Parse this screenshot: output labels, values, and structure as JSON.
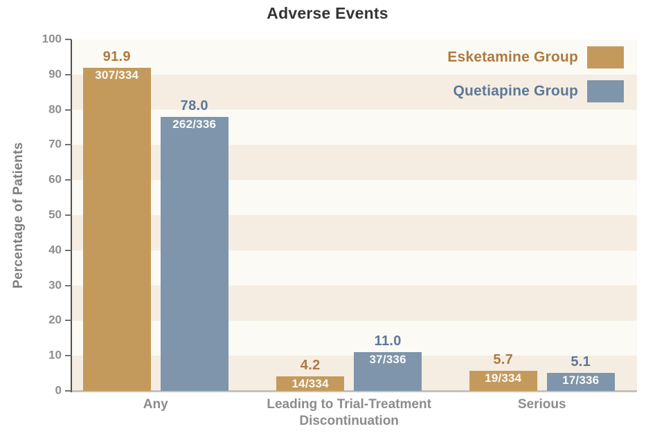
{
  "chart_data": {
    "type": "bar",
    "title": "Adverse Events",
    "ylabel": "Percentage of Patients",
    "ylim": [
      0,
      100
    ],
    "yticks": [
      0,
      10,
      20,
      30,
      40,
      50,
      60,
      70,
      80,
      90,
      100
    ],
    "grid": "alternating horizontal bands every 10 units",
    "legend_position": "top-right inside plot, labels left of swatches",
    "categories": [
      "Any",
      "Leading to Trial-Treatment\nDiscontinuation",
      "Serious"
    ],
    "series": [
      {
        "name": "Esketamine Group",
        "values": [
          91.9,
          4.2,
          5.7
        ],
        "value_labels": [
          "91.9",
          "4.2",
          "5.7"
        ],
        "fractions": [
          "307/334",
          "14/334",
          "19/334"
        ],
        "color": "#C49A5C",
        "label_color": "#AE7A3E"
      },
      {
        "name": "Quetiapine Group",
        "values": [
          78.0,
          11.0,
          5.1
        ],
        "value_labels": [
          "78.0",
          "11.0",
          "5.1"
        ],
        "fractions": [
          "262/336",
          "37/336",
          "17/336"
        ],
        "color": "#7E95AB",
        "label_color": "#5B7899"
      }
    ],
    "colors": {
      "stripe_beige": "#F5EDE1",
      "stripe_white": "#FBFAF5",
      "axis_line": "#4F4F4F",
      "baseline": "#C3C2BE",
      "tick_text": "#8E8E8E",
      "category_text": "#8C8C8C",
      "title_text": "#343434",
      "fraction_text": "#FCFBF8"
    }
  }
}
